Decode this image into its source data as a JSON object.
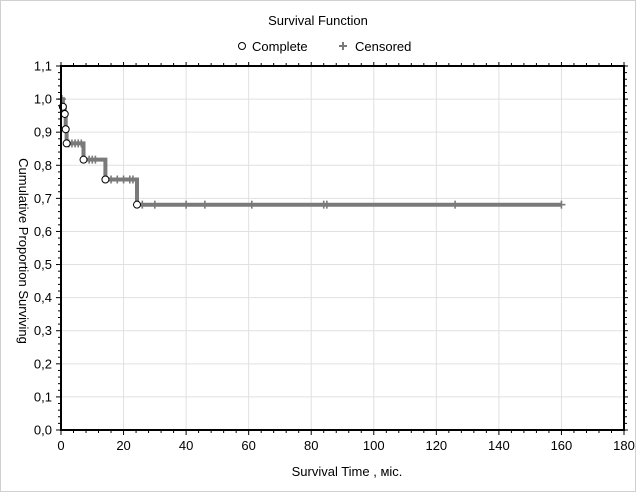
{
  "chart_data": {
    "type": "line",
    "title": "Survival Function",
    "xlabel": "Survival Time  , міс.",
    "ylabel": "Cumulative Proportion Surviving",
    "xlim": [
      0,
      180
    ],
    "ylim": [
      0,
      1.1
    ],
    "xticks": [
      0,
      20,
      40,
      60,
      80,
      100,
      120,
      140,
      160,
      180
    ],
    "yticks": [
      "0,0",
      "0,1",
      "0,2",
      "0,3",
      "0,4",
      "0,5",
      "0,6",
      "0,7",
      "0,8",
      "0,9",
      "1,0",
      "1,1"
    ],
    "grid": true,
    "legend": {
      "placement": "top-center",
      "entries": [
        {
          "label": "Complete",
          "marker": "circle"
        },
        {
          "label": "Censored",
          "marker": "plus"
        }
      ]
    },
    "series": [
      {
        "name": "Survival Function",
        "color": "#7a7a7a",
        "step_points": [
          [
            0,
            1.0
          ],
          [
            0.6,
            1.0
          ],
          [
            0.6,
            0.977
          ],
          [
            1.2,
            0.977
          ],
          [
            1.2,
            0.955
          ],
          [
            1.5,
            0.955
          ],
          [
            1.5,
            0.909
          ],
          [
            1.8,
            0.909
          ],
          [
            1.8,
            0.866
          ],
          [
            7.2,
            0.866
          ],
          [
            7.2,
            0.817
          ],
          [
            14.2,
            0.817
          ],
          [
            14.2,
            0.757
          ],
          [
            24.3,
            0.757
          ],
          [
            24.3,
            0.681
          ],
          [
            160,
            0.681
          ]
        ],
        "complete": [
          [
            0.6,
            0.977
          ],
          [
            1.2,
            0.955
          ],
          [
            1.5,
            0.909
          ],
          [
            1.8,
            0.866
          ],
          [
            7.2,
            0.817
          ],
          [
            14.2,
            0.757
          ],
          [
            24.3,
            0.681
          ]
        ],
        "censored": [
          [
            0.3,
            1.0
          ],
          [
            2.5,
            0.866
          ],
          [
            3.5,
            0.866
          ],
          [
            4.5,
            0.866
          ],
          [
            5.5,
            0.866
          ],
          [
            6.5,
            0.866
          ],
          [
            9,
            0.817
          ],
          [
            10,
            0.817
          ],
          [
            11,
            0.817
          ],
          [
            16,
            0.757
          ],
          [
            18,
            0.757
          ],
          [
            20,
            0.757
          ],
          [
            22,
            0.757
          ],
          [
            23,
            0.757
          ],
          [
            26,
            0.681
          ],
          [
            30,
            0.681
          ],
          [
            40,
            0.681
          ],
          [
            46,
            0.681
          ],
          [
            61,
            0.681
          ],
          [
            84,
            0.681
          ],
          [
            85,
            0.681
          ],
          [
            126,
            0.681
          ],
          [
            160,
            0.681
          ]
        ]
      }
    ]
  },
  "colors": {
    "line": "#7a7a7a",
    "grid": "#e0e0e0",
    "axis": "#000000"
  }
}
